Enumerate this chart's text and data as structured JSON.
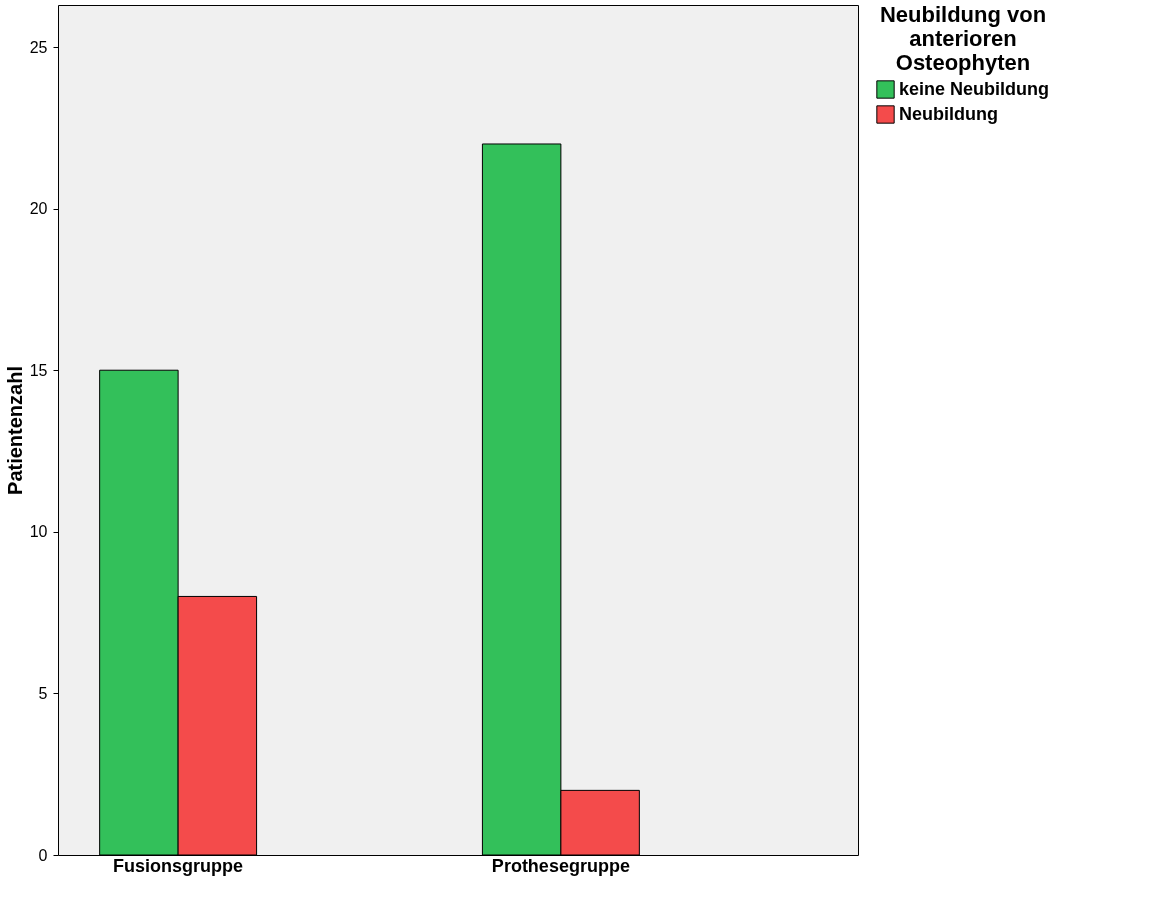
{
  "chart_data": {
    "type": "bar",
    "ylabel": "Patientenzahl",
    "legend_title": "Neubildung von anterioren Osteophyten",
    "categories": [
      "Fusionsgruppe",
      "Prothesegruppe"
    ],
    "series": [
      {
        "name": "keine Neubildung",
        "color": "#33c05a",
        "values": [
          15,
          22
        ]
      },
      {
        "name": "Neubildung",
        "color": "#f44b4b",
        "values": [
          8,
          2
        ]
      }
    ],
    "ylim": [
      0,
      26.3
    ],
    "yticks": [
      0,
      5,
      10,
      15,
      20,
      25
    ],
    "grid": false,
    "legend": "top right"
  }
}
